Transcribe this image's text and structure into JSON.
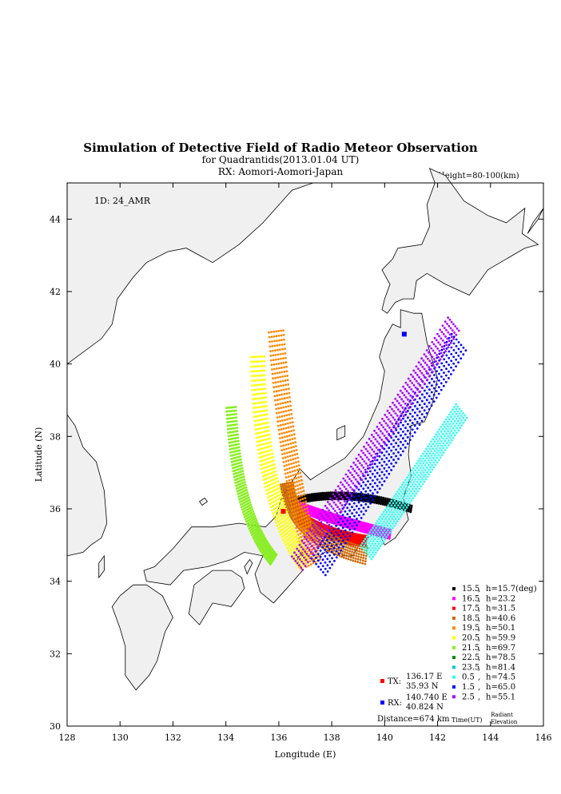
{
  "chart_data": {
    "type": "scatter",
    "title": "Simulation of Detective Field of Radio Meteor Observation",
    "subtitle": "for Quadrantids(2013.01.04 UT)",
    "subtitle2": "RX: Aomori-Aomori-Japan",
    "height_label": "Height=80-100(km)",
    "id_label": "1D: 24_AMR",
    "xlabel": "Longitude (E)",
    "ylabel": "Latitude (N)",
    "xlim": [
      128,
      146
    ],
    "ylim": [
      30,
      45
    ],
    "xticks": [
      128,
      130,
      132,
      134,
      136,
      138,
      140,
      142,
      144,
      146
    ],
    "yticks": [
      30,
      32,
      34,
      36,
      38,
      40,
      42,
      44
    ],
    "grid": false,
    "legend_position": "bottom-right",
    "legend_footer_time": "Time(UT)",
    "legend_footer_radiant": "Radiant",
    "legend_footer_elevation": "Elevation",
    "series": [
      {
        "time": "15.5",
        "h": "h=15.7(deg)",
        "color": "#000000",
        "start": [
          136.5,
          36.2
        ],
        "end": [
          141.0,
          36.0
        ],
        "bend": [
          138.5,
          36.6
        ],
        "width": 0.18
      },
      {
        "time": "16.5",
        "h": "h=23.2",
        "color": "#ff00ff",
        "start": [
          136.6,
          36.1
        ],
        "end": [
          140.2,
          35.3
        ],
        "bend": [
          138.0,
          35.7
        ],
        "width": 0.25
      },
      {
        "time": "17.5",
        "h": "h=31.5",
        "color": "#ff0000",
        "start": [
          136.7,
          35.8
        ],
        "end": [
          139.3,
          35.1
        ],
        "bend": [
          137.6,
          35.3
        ],
        "width": 0.3
      },
      {
        "time": "18.5",
        "h": "h=40.6",
        "color": "#cc6600",
        "start": [
          136.3,
          36.7
        ],
        "end": [
          139.3,
          34.7
        ],
        "bend": [
          136.5,
          35.2
        ],
        "width": 0.45
      },
      {
        "time": "19.5",
        "h": "h=50.1",
        "color": "#ff8800",
        "start": [
          135.9,
          40.9
        ],
        "end": [
          137.3,
          34.5
        ],
        "bend": [
          136.3,
          37.0
        ],
        "width": 0.55
      },
      {
        "time": "20.5",
        "h": "h=59.9",
        "color": "#ffff00",
        "start": [
          135.2,
          40.2
        ],
        "end": [
          137.0,
          34.5
        ],
        "bend": [
          135.3,
          36.2
        ],
        "width": 0.5
      },
      {
        "time": "21.5",
        "h": "h=69.7",
        "color": "#88ee22",
        "start": [
          134.2,
          38.8
        ],
        "end": [
          135.8,
          34.6
        ],
        "bend": [
          134.4,
          35.8
        ],
        "width": 0.35
      },
      {
        "time": "22.5",
        "h": "h=78.5",
        "color": "#008800",
        "start": null,
        "end": null,
        "bend": null,
        "width": 0
      },
      {
        "time": "23.5",
        "h": "h=81.4",
        "color": "#00cccc",
        "start": null,
        "end": null,
        "bend": null,
        "width": 0
      },
      {
        "time": "0.5",
        "h": "h=74.5",
        "color": "#33ffee",
        "start": [
          142.9,
          38.7
        ],
        "end": [
          139.3,
          34.8
        ],
        "bend": [
          141.0,
          36.6
        ],
        "width": 0.55
      },
      {
        "time": "1.5",
        "h": "h=65.0",
        "color": "#0000ff",
        "start": [
          142.8,
          40.6
        ],
        "end": [
          137.5,
          34.4
        ],
        "bend": [
          140.0,
          37.3
        ],
        "width": 0.7
      },
      {
        "time": "2.5",
        "h": "h=55.1",
        "color": "#aa00ff",
        "start": [
          142.6,
          41.1
        ],
        "end": [
          136.7,
          34.5
        ],
        "bend": [
          139.6,
          37.7
        ],
        "width": 0.55
      }
    ],
    "tx": {
      "label": "TX:",
      "lon_text": "136.17 E",
      "lat_text": "35.93 N",
      "lon": 136.17,
      "lat": 35.93,
      "color": "#ff0000"
    },
    "rx": {
      "label": "RX:",
      "lon_text": "140.740 E",
      "lat_text": "40.824 N",
      "lon": 140.74,
      "lat": 40.824,
      "color": "#0000ff"
    },
    "distance": "Distance=674 km"
  },
  "map": {
    "land_color": "#f0f0f0",
    "outline_color": "#000000",
    "land": [
      {
        "name": "hokkaido",
        "pts": [
          [
            139.9,
            41.5
          ],
          [
            140.1,
            41.4
          ],
          [
            140.4,
            41.7
          ],
          [
            140.7,
            41.8
          ],
          [
            141.1,
            41.8
          ],
          [
            141.2,
            42.3
          ],
          [
            141.6,
            42.5
          ],
          [
            142.3,
            42.2
          ],
          [
            143.2,
            41.9
          ],
          [
            143.9,
            42.6
          ],
          [
            144.6,
            42.9
          ],
          [
            145.3,
            43.2
          ],
          [
            145.8,
            43.3
          ],
          [
            145.2,
            43.6
          ],
          [
            145.3,
            44.3
          ],
          [
            144.6,
            43.9
          ],
          [
            143.9,
            44.1
          ],
          [
            143.0,
            44.5
          ],
          [
            142.3,
            45.2
          ],
          [
            141.7,
            45.4
          ],
          [
            141.9,
            45.0
          ],
          [
            141.6,
            44.4
          ],
          [
            141.7,
            43.8
          ],
          [
            141.4,
            43.3
          ],
          [
            140.5,
            43.2
          ],
          [
            140.3,
            42.9
          ],
          [
            139.9,
            42.6
          ],
          [
            140.2,
            42.2
          ],
          [
            140.0,
            41.8
          ]
        ]
      },
      {
        "name": "honshu",
        "pts": [
          [
            140.6,
            41.5
          ],
          [
            141.1,
            41.4
          ],
          [
            141.4,
            41.4
          ],
          [
            141.6,
            40.6
          ],
          [
            142.0,
            39.6
          ],
          [
            141.8,
            38.9
          ],
          [
            141.5,
            38.4
          ],
          [
            141.0,
            38.3
          ],
          [
            140.9,
            37.5
          ],
          [
            141.0,
            36.9
          ],
          [
            140.7,
            36.3
          ],
          [
            140.9,
            35.7
          ],
          [
            140.4,
            35.2
          ],
          [
            140.0,
            35.0
          ],
          [
            139.8,
            35.3
          ],
          [
            139.6,
            35.3
          ],
          [
            139.1,
            35.1
          ],
          [
            138.8,
            34.7
          ],
          [
            138.4,
            34.7
          ],
          [
            138.2,
            35.0
          ],
          [
            137.3,
            34.6
          ],
          [
            136.9,
            34.8
          ],
          [
            136.7,
            34.6
          ],
          [
            136.9,
            34.3
          ],
          [
            136.3,
            33.8
          ],
          [
            135.8,
            33.4
          ],
          [
            135.3,
            33.7
          ],
          [
            135.1,
            34.2
          ],
          [
            135.4,
            34.7
          ],
          [
            134.7,
            34.8
          ],
          [
            134.2,
            34.6
          ],
          [
            133.3,
            34.4
          ],
          [
            132.4,
            34.3
          ],
          [
            131.9,
            33.9
          ],
          [
            131.0,
            34.0
          ],
          [
            130.9,
            34.3
          ],
          [
            131.3,
            34.4
          ],
          [
            132.0,
            34.9
          ],
          [
            132.7,
            35.5
          ],
          [
            133.5,
            35.5
          ],
          [
            134.5,
            35.6
          ],
          [
            135.5,
            35.5
          ],
          [
            135.9,
            35.8
          ],
          [
            136.1,
            36.3
          ],
          [
            136.8,
            37.1
          ],
          [
            137.2,
            36.8
          ],
          [
            137.4,
            36.9
          ],
          [
            138.5,
            37.4
          ],
          [
            139.2,
            38.0
          ],
          [
            139.8,
            39.0
          ],
          [
            140.0,
            39.8
          ],
          [
            139.8,
            40.2
          ],
          [
            140.0,
            40.7
          ],
          [
            140.3,
            41.1
          ],
          [
            140.6,
            41.0
          ]
        ]
      },
      {
        "name": "shikoku",
        "pts": [
          [
            132.6,
            33.1
          ],
          [
            132.8,
            33.9
          ],
          [
            133.5,
            34.3
          ],
          [
            134.2,
            34.3
          ],
          [
            134.6,
            34.1
          ],
          [
            134.7,
            33.8
          ],
          [
            134.2,
            33.3
          ],
          [
            133.5,
            33.4
          ],
          [
            133.0,
            32.8
          ]
        ]
      },
      {
        "name": "kyushu",
        "pts": [
          [
            129.7,
            33.3
          ],
          [
            130.0,
            32.7
          ],
          [
            130.2,
            32.2
          ],
          [
            130.2,
            31.4
          ],
          [
            130.6,
            31.0
          ],
          [
            131.1,
            31.4
          ],
          [
            131.4,
            31.8
          ],
          [
            131.7,
            32.6
          ],
          [
            132.0,
            33.0
          ],
          [
            131.6,
            33.6
          ],
          [
            131.0,
            33.9
          ],
          [
            130.5,
            33.9
          ],
          [
            130.0,
            33.6
          ]
        ]
      },
      {
        "name": "sado",
        "pts": [
          [
            138.2,
            37.9
          ],
          [
            138.5,
            38.0
          ],
          [
            138.5,
            38.3
          ],
          [
            138.2,
            38.2
          ]
        ]
      },
      {
        "name": "tsushima",
        "pts": [
          [
            129.2,
            34.1
          ],
          [
            129.4,
            34.3
          ],
          [
            129.4,
            34.7
          ],
          [
            129.2,
            34.5
          ]
        ]
      },
      {
        "name": "oki",
        "pts": [
          [
            133.1,
            36.1
          ],
          [
            133.3,
            36.2
          ],
          [
            133.2,
            36.3
          ],
          [
            133.0,
            36.2
          ]
        ]
      },
      {
        "name": "awaji",
        "pts": [
          [
            134.8,
            34.2
          ],
          [
            135.0,
            34.5
          ],
          [
            134.9,
            34.6
          ],
          [
            134.7,
            34.4
          ]
        ]
      },
      {
        "name": "korea",
        "pts": [
          [
            128.0,
            38.6
          ],
          [
            128.3,
            38.3
          ],
          [
            128.6,
            37.7
          ],
          [
            129.1,
            37.3
          ],
          [
            129.4,
            36.5
          ],
          [
            129.5,
            35.6
          ],
          [
            129.3,
            35.2
          ],
          [
            128.9,
            35.0
          ],
          [
            128.6,
            34.8
          ],
          [
            128.0,
            34.7
          ]
        ]
      },
      {
        "name": "mainland",
        "pts": [
          [
            128.0,
            40.0
          ],
          [
            129.3,
            40.7
          ],
          [
            129.7,
            41.1
          ],
          [
            129.9,
            41.8
          ],
          [
            130.5,
            42.4
          ],
          [
            131.0,
            42.8
          ],
          [
            131.8,
            43.1
          ],
          [
            132.5,
            43.2
          ],
          [
            133.5,
            42.8
          ],
          [
            134.5,
            43.3
          ],
          [
            135.4,
            43.9
          ],
          [
            136.5,
            44.8
          ],
          [
            137.3,
            45.0
          ],
          [
            128.0,
            45.0
          ]
        ]
      },
      {
        "name": "sakhalin",
        "pts": [
          [
            141.9,
            45.0
          ],
          [
            142.1,
            45.0
          ],
          [
            142.0,
            45.0
          ]
        ]
      },
      {
        "name": "kunashir",
        "pts": [
          [
            145.4,
            43.6
          ],
          [
            145.8,
            44.0
          ],
          [
            146.0,
            44.3
          ],
          [
            145.6,
            43.9
          ]
        ]
      }
    ]
  }
}
